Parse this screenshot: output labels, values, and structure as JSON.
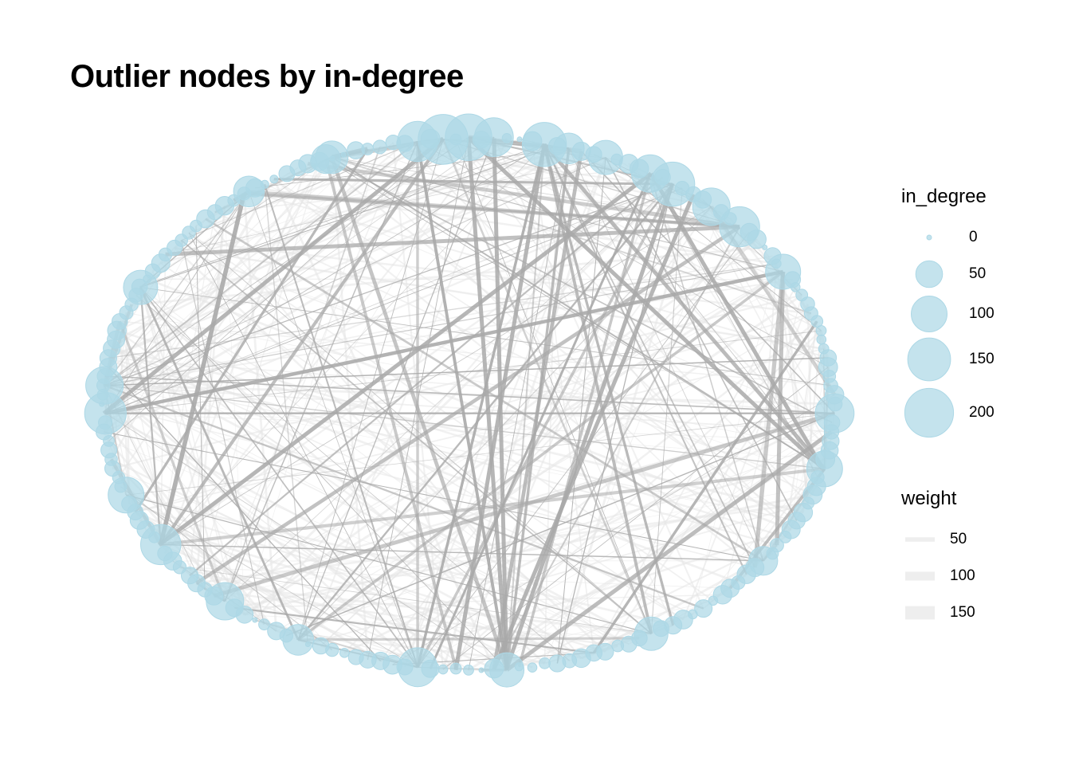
{
  "title": "Outlier nodes by in-degree",
  "colors": {
    "node_fill": "#add8e6",
    "edge": "#a9a9a9",
    "edge_light": "#e6e6e6",
    "background": "#ffffff"
  },
  "legend": {
    "size_title": "in_degree",
    "size_entries": [
      {
        "label": "0",
        "value": 0
      },
      {
        "label": "50",
        "value": 50
      },
      {
        "label": "100",
        "value": 100
      },
      {
        "label": "150",
        "value": 150
      },
      {
        "label": "200",
        "value": 200
      }
    ],
    "weight_title": "weight",
    "weight_entries": [
      {
        "label": "50",
        "value": 50
      },
      {
        "label": "100",
        "value": 100
      },
      {
        "label": "150",
        "value": 150
      }
    ]
  }
}
